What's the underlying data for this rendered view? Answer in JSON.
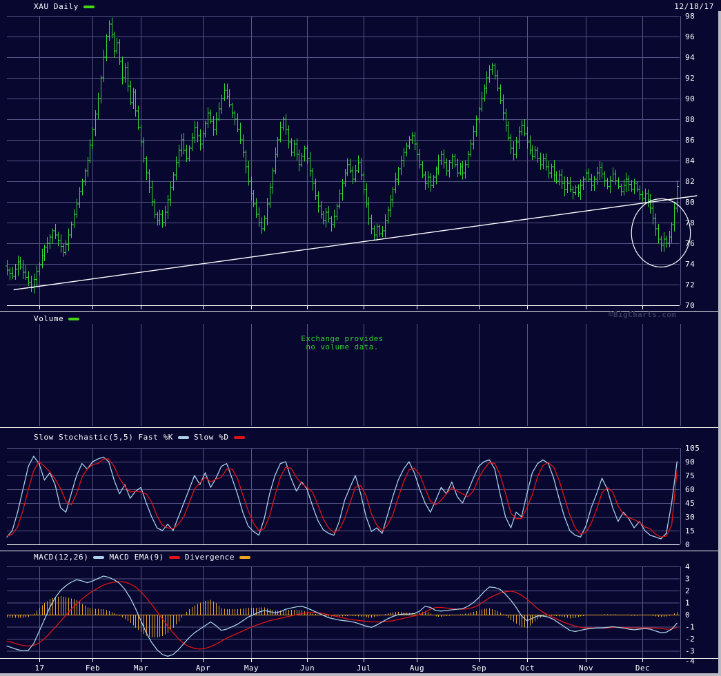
{
  "header": {
    "symbol_label": "XAU Daily",
    "date": "12/18/17"
  },
  "volume_panel": {
    "label": "Volume",
    "message_line1": "Exchange provides",
    "message_line2": "no volume data.",
    "copyright": "©BigCharts.com"
  },
  "stochastic_panel": {
    "label": "Slow Stochastic(5,5)",
    "fast_k_label": "Fast %K",
    "slow_d_label": "Slow %D"
  },
  "macd_panel": {
    "macd_label": "MACD(12,26)",
    "ema_label": "MACD EMA(9)",
    "divergence_label": "Divergence"
  },
  "colors": {
    "background": "#070730",
    "grid": "#565686",
    "separator": "#ffffff",
    "text": "#ffffff",
    "price_bars": "#36d936",
    "legend_green": "#44d414",
    "trendline": "#ffffff",
    "annotation_circle": "#ffffff",
    "fast_k": "#a8cfe6",
    "slow_d": "#e01414",
    "macd_line": "#a8cfe6",
    "macd_signal": "#e01414",
    "divergence": "#e8a423",
    "volume_message": "#33cc33",
    "copyright": "#3a3a5f",
    "frame_border": "#b9b9c2"
  },
  "chart_data": [
    {
      "type": "ohlc",
      "panel": "price",
      "title": "XAU Daily",
      "ylim": [
        70,
        98
      ],
      "yticks": [
        98,
        96,
        94,
        92,
        90,
        88,
        86,
        84,
        82,
        80,
        78,
        76,
        74,
        72,
        70
      ],
      "n_bars": 251,
      "x_months": {
        "labels": [
          "17",
          "Feb",
          "Mar",
          "Apr",
          "May",
          "Jun",
          "Jul",
          "Aug",
          "Sep",
          "Oct",
          "Nov",
          "Dec"
        ],
        "bar_index": [
          12,
          32,
          50,
          73,
          91,
          112,
          133,
          153,
          176,
          194,
          216,
          237
        ]
      },
      "closes": [
        73.4,
        73.1,
        72.8,
        73.5,
        74.2,
        73.7,
        73.2,
        72.7,
        72.2,
        71.7,
        72.5,
        73.3,
        73.9,
        74.8,
        75.6,
        76.0,
        76.6,
        77.2,
        76.8,
        76.3,
        75.7,
        75.1,
        75.9,
        76.8,
        77.8,
        78.8,
        79.8,
        81.0,
        82.0,
        83.0,
        84.0,
        85.5,
        87.0,
        88.5,
        90.0,
        92.0,
        94.0,
        96.0,
        97.2,
        96.2,
        94.6,
        95.4,
        93.6,
        92.0,
        93.0,
        91.2,
        89.6,
        90.6,
        88.8,
        87.2,
        85.8,
        84.2,
        82.8,
        81.4,
        80.0,
        78.8,
        78.2,
        78.8,
        78.0,
        79.0,
        80.2,
        81.4,
        82.6,
        83.8,
        85.0,
        86.0,
        85.0,
        84.2,
        85.2,
        86.2,
        87.2,
        86.4,
        85.6,
        86.6,
        87.6,
        88.6,
        87.8,
        87.0,
        88.0,
        89.0,
        90.0,
        90.8,
        90.2,
        89.4,
        88.6,
        88.0,
        87.0,
        86.0,
        84.8,
        83.4,
        82.0,
        80.8,
        79.8,
        78.8,
        78.0,
        77.4,
        78.4,
        79.8,
        81.4,
        83.0,
        84.6,
        86.0,
        87.2,
        88.0,
        87.0,
        85.8,
        84.8,
        85.6,
        84.6,
        83.6,
        84.4,
        85.2,
        84.2,
        83.0,
        81.8,
        80.6,
        79.6,
        78.8,
        78.2,
        79.0,
        78.4,
        77.8,
        78.6,
        79.6,
        80.8,
        81.8,
        82.8,
        83.6,
        83.0,
        82.2,
        83.0,
        83.8,
        82.6,
        81.2,
        79.8,
        78.4,
        77.4,
        76.8,
        77.6,
        76.9,
        77.2,
        78.2,
        79.2,
        80.2,
        81.2,
        82.2,
        83.2,
        84.0,
        84.8,
        85.4,
        86.0,
        86.4,
        85.6,
        84.6,
        83.6,
        82.6,
        81.8,
        82.4,
        81.6,
        82.4,
        83.2,
        84.0,
        84.6,
        83.8,
        83.0,
        83.8,
        84.4,
        83.6,
        82.8,
        83.4,
        82.8,
        83.6,
        84.6,
        85.6,
        86.8,
        88.0,
        89.0,
        90.0,
        91.0,
        92.0,
        92.8,
        93.2,
        92.2,
        91.0,
        89.8,
        88.6,
        87.4,
        86.2,
        85.2,
        84.6,
        85.8,
        86.8,
        87.4,
        86.6,
        85.8,
        85.0,
        84.4,
        85.0,
        84.2,
        83.6,
        84.2,
        83.4,
        82.8,
        83.4,
        82.6,
        82.0,
        82.6,
        81.8,
        81.2,
        81.8,
        81.2,
        80.9,
        81.4,
        80.9,
        81.6,
        82.2,
        82.8,
        82.2,
        81.6,
        82.2,
        82.8,
        83.3,
        82.7,
        82.1,
        81.5,
        82.1,
        82.7,
        82.1,
        81.5,
        81.0,
        81.6,
        82.2,
        81.7,
        81.2,
        81.8,
        81.2,
        80.7,
        80.3,
        80.8,
        80.2,
        79.4,
        78.4,
        77.4,
        76.4,
        75.8,
        76.4,
        76.0,
        76.6,
        77.8,
        79.4,
        81.5
      ],
      "trendline": {
        "x1_bar": 2.5,
        "price1": 71.5,
        "x2_bar": 257.5,
        "price2": 80.6
      },
      "circle_annotation": {
        "center_bar": 244,
        "center_price": 77.0,
        "radius_bars": 11,
        "radius_price": 3.3
      }
    },
    {
      "type": "bar",
      "panel": "volume",
      "title": "Volume",
      "values": [],
      "message": "Exchange provides no volume data."
    },
    {
      "type": "line",
      "panel": "stochastic",
      "title": "Slow Stochastic(5,5)",
      "ylim": [
        0,
        105
      ],
      "yticks": [
        105,
        90,
        75,
        60,
        45,
        30,
        15,
        0
      ],
      "x_step": 2,
      "series": [
        {
          "name": "Fast %K",
          "color_key": "fast_k",
          "values": [
            8,
            15,
            35,
            60,
            85,
            96,
            88,
            70,
            78,
            65,
            40,
            35,
            55,
            75,
            88,
            82,
            90,
            93,
            95,
            90,
            70,
            55,
            65,
            50,
            58,
            62,
            45,
            30,
            18,
            15,
            22,
            15,
            30,
            45,
            60,
            75,
            65,
            78,
            62,
            72,
            85,
            88,
            72,
            55,
            35,
            20,
            14,
            10,
            28,
            55,
            75,
            88,
            90,
            72,
            58,
            68,
            60,
            42,
            26,
            16,
            12,
            10,
            25,
            48,
            62,
            75,
            55,
            30,
            14,
            18,
            12,
            32,
            52,
            70,
            82,
            90,
            78,
            60,
            45,
            35,
            48,
            62,
            55,
            68,
            52,
            45,
            58,
            72,
            85,
            90,
            92,
            82,
            55,
            30,
            18,
            35,
            30,
            55,
            78,
            88,
            92,
            88,
            72,
            50,
            30,
            15,
            10,
            8,
            20,
            40,
            55,
            72,
            60,
            40,
            25,
            35,
            28,
            18,
            25,
            15,
            10,
            8,
            6,
            12,
            45,
            90
          ]
        },
        {
          "name": "Slow %D",
          "color_key": "slow_d",
          "values": [
            9,
            11,
            19,
            37,
            60,
            80,
            90,
            85,
            79,
            71,
            61,
            47,
            43,
            55,
            73,
            82,
            87,
            88,
            93,
            93,
            85,
            72,
            63,
            57,
            58,
            57,
            55,
            46,
            31,
            21,
            18,
            17,
            22,
            30,
            45,
            60,
            67,
            73,
            68,
            71,
            73,
            82,
            82,
            72,
            54,
            37,
            23,
            15,
            17,
            31,
            53,
            73,
            84,
            83,
            73,
            66,
            62,
            57,
            43,
            28,
            18,
            13,
            16,
            28,
            45,
            62,
            64,
            53,
            33,
            21,
            15,
            21,
            32,
            51,
            68,
            81,
            83,
            76,
            61,
            47,
            43,
            48,
            55,
            62,
            58,
            55,
            52,
            58,
            72,
            82,
            89,
            88,
            76,
            56,
            34,
            28,
            28,
            40,
            54,
            74,
            86,
            89,
            84,
            70,
            51,
            32,
            18,
            11,
            13,
            23,
            38,
            56,
            62,
            57,
            42,
            33,
            29,
            27,
            24,
            19,
            17,
            11,
            8,
            9,
            21,
            80
          ]
        }
      ]
    },
    {
      "type": "line+histogram",
      "panel": "macd",
      "title": "MACD(12,26)",
      "ylim": [
        -4,
        4
      ],
      "yticks": [
        4,
        3,
        2,
        1,
        0,
        -1,
        -2,
        -3,
        -4
      ],
      "x_step": 2,
      "macd": [
        -2.6,
        -2.75,
        -2.9,
        -3.0,
        -2.95,
        -2.4,
        -1.4,
        -0.4,
        0.6,
        1.4,
        2.0,
        2.4,
        2.7,
        2.9,
        2.8,
        2.65,
        2.8,
        3.0,
        3.2,
        3.1,
        2.9,
        2.6,
        2.1,
        1.4,
        0.5,
        -0.5,
        -1.5,
        -2.3,
        -2.9,
        -3.3,
        -3.45,
        -3.3,
        -2.9,
        -2.4,
        -1.9,
        -1.5,
        -1.2,
        -0.9,
        -0.6,
        -0.9,
        -1.3,
        -1.2,
        -1.0,
        -0.8,
        -0.5,
        -0.2,
        0.0,
        0.2,
        0.35,
        0.25,
        0.15,
        0.25,
        0.45,
        0.55,
        0.65,
        0.7,
        0.55,
        0.35,
        0.15,
        -0.05,
        -0.25,
        -0.35,
        -0.45,
        -0.5,
        -0.55,
        -0.65,
        -0.8,
        -0.95,
        -1.05,
        -0.85,
        -0.6,
        -0.35,
        -0.15,
        0.0,
        0.05,
        0.05,
        0.1,
        0.3,
        0.7,
        0.6,
        0.35,
        0.3,
        0.35,
        0.4,
        0.45,
        0.5,
        0.7,
        1.0,
        1.4,
        1.9,
        2.3,
        2.25,
        2.1,
        1.7,
        1.2,
        0.6,
        -0.1,
        -0.5,
        -0.3,
        -0.1,
        -0.1,
        -0.2,
        -0.4,
        -0.7,
        -1.0,
        -1.3,
        -1.4,
        -1.3,
        -1.2,
        -1.15,
        -1.1,
        -1.1,
        -1.05,
        -1.0,
        -1.05,
        -1.1,
        -1.2,
        -1.25,
        -1.2,
        -1.15,
        -1.2,
        -1.35,
        -1.5,
        -1.45,
        -1.2,
        -0.7
      ],
      "signal": [
        -2.2,
        -2.3,
        -2.45,
        -2.55,
        -2.6,
        -2.55,
        -2.35,
        -2.0,
        -1.55,
        -1.05,
        -0.55,
        -0.05,
        0.45,
        0.9,
        1.3,
        1.65,
        1.95,
        2.2,
        2.45,
        2.6,
        2.7,
        2.75,
        2.7,
        2.55,
        2.3,
        1.9,
        1.4,
        0.85,
        0.25,
        -0.35,
        -0.95,
        -1.5,
        -2.0,
        -2.4,
        -2.65,
        -2.8,
        -2.85,
        -2.8,
        -2.65,
        -2.45,
        -2.2,
        -1.95,
        -1.75,
        -1.55,
        -1.35,
        -1.15,
        -0.95,
        -0.8,
        -0.65,
        -0.5,
        -0.4,
        -0.3,
        -0.2,
        -0.1,
        0.0,
        0.1,
        0.15,
        0.2,
        0.15,
        0.1,
        0.0,
        -0.1,
        -0.2,
        -0.3,
        -0.4,
        -0.45,
        -0.5,
        -0.55,
        -0.6,
        -0.6,
        -0.6,
        -0.55,
        -0.5,
        -0.4,
        -0.3,
        -0.2,
        -0.1,
        0.0,
        0.2,
        0.45,
        0.6,
        0.6,
        0.55,
        0.5,
        0.45,
        0.45,
        0.5,
        0.6,
        0.8,
        1.1,
        1.4,
        1.6,
        1.8,
        1.9,
        1.95,
        1.85,
        1.6,
        1.3,
        0.9,
        0.5,
        0.2,
        -0.05,
        -0.25,
        -0.45,
        -0.65,
        -0.8,
        -0.95,
        -1.05,
        -1.1,
        -1.1,
        -1.1,
        -1.1,
        -1.1,
        -1.05,
        -1.05,
        -1.05,
        -1.1,
        -1.1,
        -1.1,
        -1.1,
        -1.1,
        -1.1,
        -1.15,
        -1.2,
        -1.2,
        -1.05
      ],
      "divergence_scale": 0.6
    }
  ]
}
